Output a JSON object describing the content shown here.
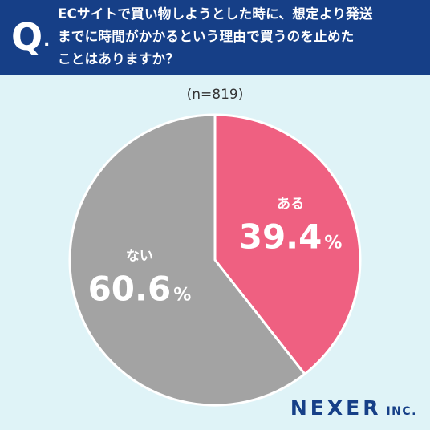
{
  "header": {
    "q_mark": "Q",
    "q_dot": ".",
    "question_lines": [
      "ECサイトで買い物しようとした時に、想定より発送",
      "までに時間がかかるという理由で買うのを止めた",
      "ことはありますか？"
    ]
  },
  "sample_label": "(n=819)",
  "logo": {
    "main": "NEXER",
    "sub": "INC."
  },
  "colors": {
    "header_bg": "#163f87",
    "page_bg": "#dff3f7",
    "slice_yes": "#ef6081",
    "slice_no": "#a3a3a3",
    "slice_border": "#ffffff"
  },
  "chart_data": {
    "type": "pie",
    "start": "12 o'clock, clockwise",
    "slices": [
      {
        "label": "ある",
        "value": 39.4,
        "display": "39.4",
        "unit": "%",
        "color": "#ef6081"
      },
      {
        "label": "ない",
        "value": 60.6,
        "display": "60.6",
        "unit": "%",
        "color": "#a3a3a3"
      }
    ]
  }
}
